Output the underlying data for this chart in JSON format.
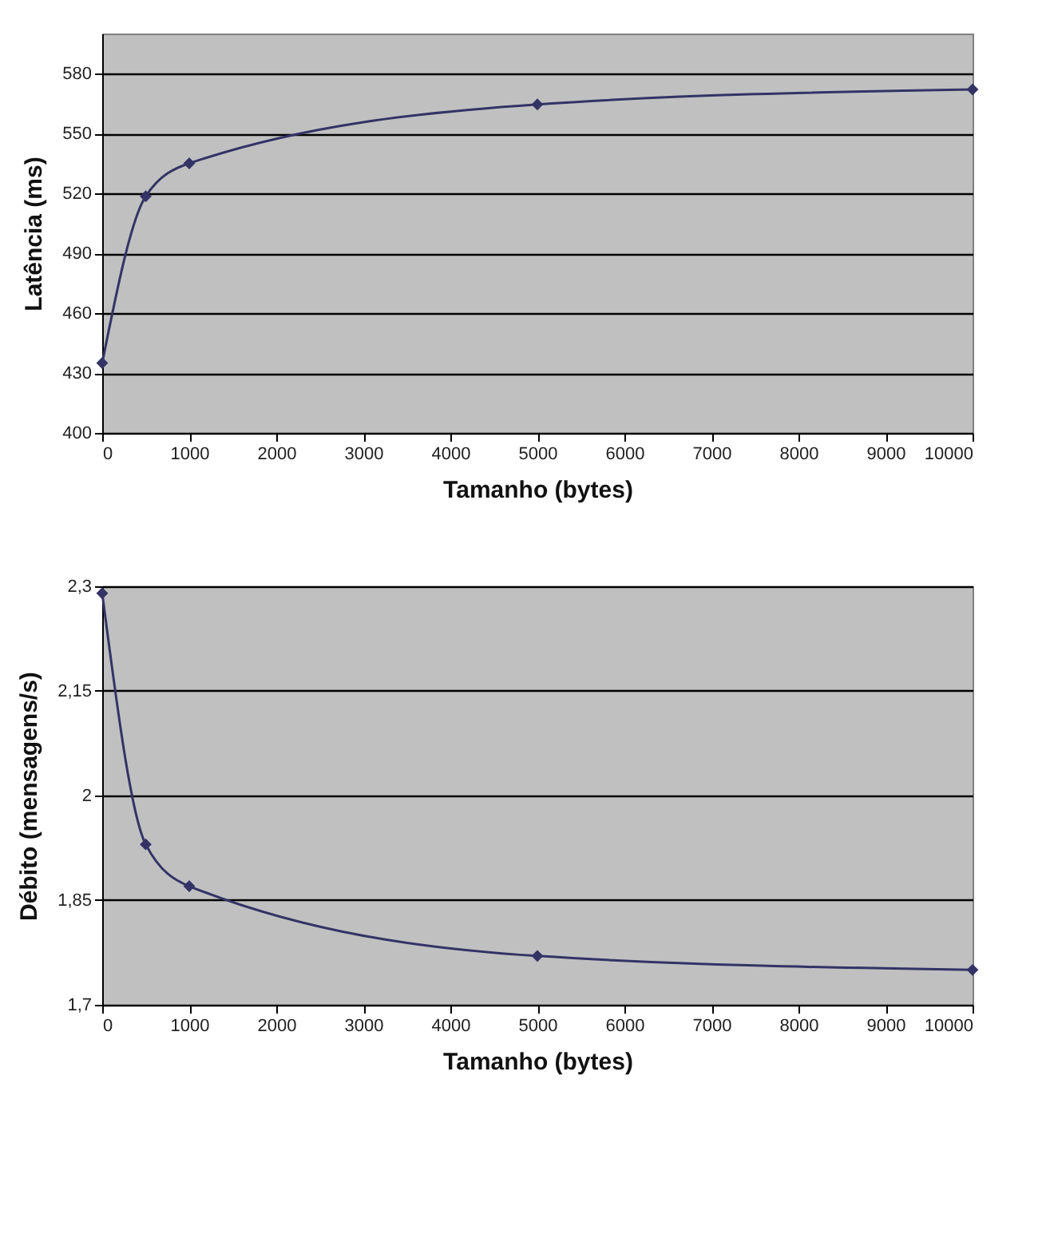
{
  "chart_data": [
    {
      "type": "line",
      "xlabel": "Tamanho (bytes)",
      "ylabel": "Latência (ms)",
      "x": [
        0,
        500,
        1000,
        5000,
        10000
      ],
      "series": [
        {
          "color": "#333366",
          "values": [
            435,
            518.5,
            535,
            564.5,
            572
          ]
        }
      ],
      "xlim": [
        0,
        10000
      ],
      "xticks": [
        0,
        1000,
        2000,
        3000,
        4000,
        5000,
        6000,
        7000,
        8000,
        9000,
        10000
      ],
      "ylim": [
        400,
        600
      ],
      "yticks": [
        400,
        430,
        460,
        490,
        520,
        550,
        580
      ],
      "grid": "y",
      "marker": "diamond",
      "line_style": "solid"
    },
    {
      "type": "line",
      "xlabel": "Tamanho (bytes)",
      "ylabel": "Débito (mensagens/s)",
      "x": [
        0,
        500,
        1000,
        5000,
        10000
      ],
      "series": [
        {
          "color": "#333366",
          "values": [
            2.29,
            1.93,
            1.87,
            1.77,
            1.75
          ]
        }
      ],
      "xlim": [
        0,
        10000
      ],
      "xticks": [
        0,
        1000,
        2000,
        3000,
        4000,
        5000,
        6000,
        7000,
        8000,
        9000,
        10000
      ],
      "ylim": [
        1.7,
        2.3
      ],
      "yticks": [
        {
          "value": 1.7,
          "label": "1,7"
        },
        {
          "value": 1.85,
          "label": "1,85"
        },
        {
          "value": 2,
          "label": "2"
        },
        {
          "value": 2.15,
          "label": "2,15"
        },
        {
          "value": 2.3,
          "label": "2,3"
        }
      ],
      "grid": "y",
      "marker": "diamond",
      "line_style": "solid"
    }
  ]
}
